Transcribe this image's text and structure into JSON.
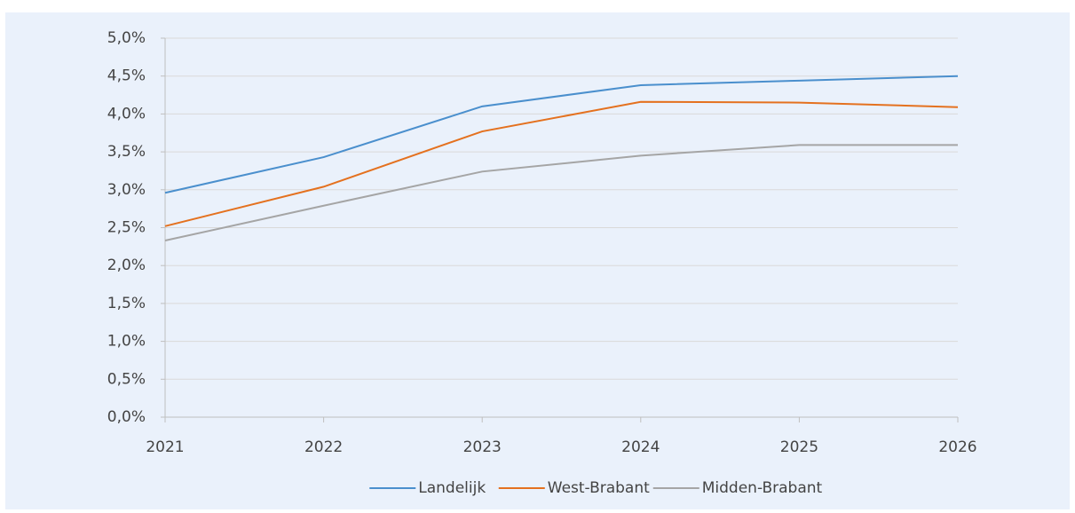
{
  "chart_data": {
    "type": "line",
    "x": [
      2021,
      2022,
      2023,
      2024,
      2025,
      2026
    ],
    "xlim": [
      2021,
      2026
    ],
    "xticks": [
      2021,
      2022,
      2023,
      2024,
      2025,
      2026
    ],
    "ylim": [
      0,
      5
    ],
    "yticks": [
      {
        "value": 0,
        "label": "0,0%"
      },
      {
        "value": 0.5,
        "label": "0,5%"
      },
      {
        "value": 1,
        "label": "1,0%"
      },
      {
        "value": 1.5,
        "label": "1,5%"
      },
      {
        "value": 2,
        "label": "2,0%"
      },
      {
        "value": 2.5,
        "label": "2,5%"
      },
      {
        "value": 3,
        "label": "3,0%"
      },
      {
        "value": 3.5,
        "label": "3,5%"
      },
      {
        "value": 4,
        "label": "4,0%"
      },
      {
        "value": 4.5,
        "label": "4,5%"
      },
      {
        "value": 5,
        "label": "5,0%"
      }
    ],
    "grid": true,
    "legend": "bottom",
    "series": [
      {
        "name": "Landelijk",
        "color": "#4a8fcd",
        "values": [
          2.96,
          3.43,
          4.1,
          4.38,
          4.44,
          4.5
        ]
      },
      {
        "name": "West-Brabant",
        "color": "#e4711f",
        "values": [
          2.52,
          3.04,
          3.77,
          4.16,
          4.15,
          4.09
        ]
      },
      {
        "name": "Midden-Brabant",
        "color": "#a5a5a5",
        "values": [
          2.33,
          2.79,
          3.24,
          3.45,
          3.59,
          3.59
        ]
      }
    ]
  }
}
